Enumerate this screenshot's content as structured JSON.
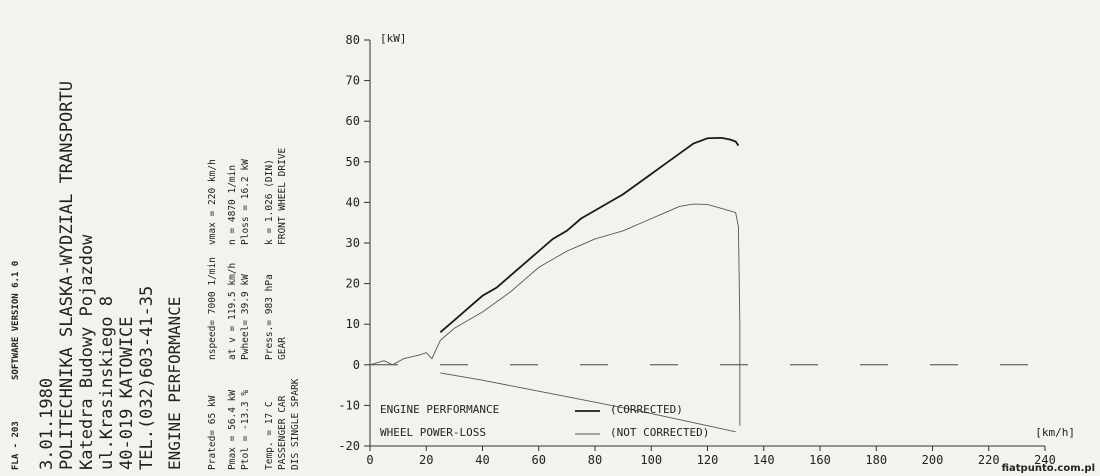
{
  "header": {
    "software": [
      "FLA - 203",
      "SOFTWARE VERSION  6.1 0"
    ],
    "lines": [
      "3.01.1980",
      "POLITECHNIKA SLASKA-WYDZIAL   TRANSPORTU",
      "Katedra Budowy Pojazdow",
      "ul.Krasinskiego 8",
      "40-019 KATOWICE",
      "TEL.(032)603-41-35"
    ],
    "section": "ENGINE PERFORMANCE",
    "rows": [
      [
        "Prated=   65 kW",
        "nspeed=  7000 1/min",
        "vmax =   220 km/h"
      ],
      [
        "Pmax =  56.4 kW",
        "at  v = 119.5 km/h",
        "n =    4870 1/min"
      ],
      [
        "Ptol = -13.3 %",
        "Pwheel=  39.9 kW",
        "Ploss =  16.2 kW"
      ],
      [
        "Temp. =  17  C",
        "Press.=  983   hPa",
        "k   = 1.026 (DIN)"
      ],
      [
        "PASSENGER CAR",
        "GEAR",
        "FRONT WHEEL DRIVE"
      ],
      [
        "DIS SINGLE SPARK"
      ]
    ]
  },
  "chart_data": {
    "type": "line",
    "y_unit": "[kW]",
    "x_unit": "[km/h]",
    "xlim": [
      0,
      240
    ],
    "xticks": [
      0,
      20,
      40,
      60,
      80,
      100,
      120,
      140,
      160,
      180,
      200,
      220,
      240
    ],
    "ylim": [
      -20,
      80
    ],
    "yticks": [
      -20,
      -10,
      0,
      10,
      20,
      30,
      40,
      50,
      60,
      70,
      80
    ],
    "zero_line": true,
    "series": [
      {
        "name": "ENGINE PERFORMANCE",
        "note": "(CORRECTED)",
        "color": "#1a1a1a",
        "width": 1.8,
        "x": [
          25,
          30,
          35,
          40,
          45,
          50,
          55,
          60,
          65,
          70,
          75,
          80,
          85,
          90,
          95,
          100,
          105,
          110,
          115,
          120,
          125,
          128,
          130,
          131
        ],
        "values": [
          8,
          11,
          14,
          17,
          19,
          22,
          25,
          28,
          31,
          33,
          36,
          38,
          40,
          42,
          44.5,
          47,
          49.5,
          52,
          54.5,
          55.8,
          55.9,
          55.5,
          55,
          54
        ]
      },
      {
        "note": "(NOT CORRECTED)",
        "color": "#555555",
        "width": 0.9,
        "x": [
          0,
          5,
          8,
          12,
          15,
          18,
          20,
          22,
          25,
          30,
          35,
          40,
          45,
          50,
          55,
          60,
          65,
          70,
          75,
          80,
          85,
          90,
          95,
          100,
          105,
          110,
          115,
          120,
          125,
          130,
          131,
          131.5,
          131.5
        ],
        "values": [
          0,
          1,
          0,
          1.5,
          2,
          2.5,
          3,
          1.5,
          6,
          9,
          11,
          13,
          15.5,
          18,
          21,
          24,
          26,
          28,
          29.5,
          31,
          32,
          33,
          34.5,
          36,
          37.5,
          39,
          39.6,
          39.5,
          38.5,
          37.5,
          34,
          10,
          -15
        ]
      },
      {
        "name": "WHEEL POWER-LOSS",
        "color": "#555555",
        "width": 0.9,
        "x": [
          25,
          40,
          60,
          80,
          100,
          120,
          130
        ],
        "values": [
          -2,
          -3.8,
          -6.5,
          -9.2,
          -12,
          -15,
          -16.5
        ]
      }
    ]
  }
}
